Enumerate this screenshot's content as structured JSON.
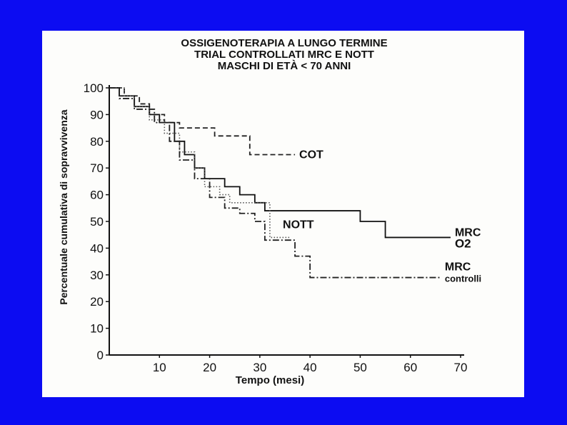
{
  "chart_data": {
    "type": "line",
    "title": [
      "OSSIGENOTERAPIA A LUNGO TERMINE",
      "TRIAL CONTROLLATI MRC E NOTT",
      "MASCHI DI ETÀ < 70 ANNI"
    ],
    "x_label": "Tempo (mesi)",
    "y_label": "Percentuale cumulativa di sopravvivenza",
    "xlim": [
      0,
      70
    ],
    "xticks": [
      10,
      20,
      30,
      40,
      50,
      60,
      70
    ],
    "ylim": [
      0,
      100
    ],
    "yticks": [
      0,
      10,
      20,
      30,
      40,
      50,
      60,
      70,
      80,
      90,
      100
    ],
    "step": true,
    "series": [
      {
        "name": "COT",
        "color": "#222222",
        "line_style": "dashed",
        "x": [
          0,
          3,
          6,
          8,
          11,
          14,
          21,
          28,
          37
        ],
        "values": [
          100,
          97,
          94,
          90,
          87,
          85,
          82,
          75,
          75
        ]
      },
      {
        "name": "MRC O2",
        "color": "#111111",
        "line_style": "solid",
        "x": [
          0,
          2,
          5,
          8,
          10,
          13,
          15,
          17,
          19,
          23,
          26,
          29,
          31,
          50,
          55,
          68
        ],
        "values": [
          100,
          97,
          93,
          90,
          87,
          80,
          75,
          70,
          66,
          63,
          60,
          57,
          54,
          50,
          44,
          44
        ]
      },
      {
        "name": "NOTT",
        "color": "#555555",
        "line_style": "dotted",
        "x": [
          0,
          3,
          5,
          8,
          11,
          14,
          17,
          19,
          22,
          24,
          32,
          36
        ],
        "values": [
          100,
          97,
          93,
          88,
          83,
          76,
          70,
          63,
          60,
          57,
          44,
          44
        ]
      },
      {
        "name": "MRC controlli",
        "color": "#222222",
        "line_style": "dashdot",
        "x": [
          0,
          2,
          5,
          9,
          12,
          14,
          17,
          20,
          23,
          26,
          29,
          31,
          37,
          40,
          66
        ],
        "values": [
          100,
          96,
          92,
          87,
          80,
          73,
          66,
          59,
          55,
          53,
          50,
          43,
          37,
          29,
          29
        ]
      }
    ]
  }
}
